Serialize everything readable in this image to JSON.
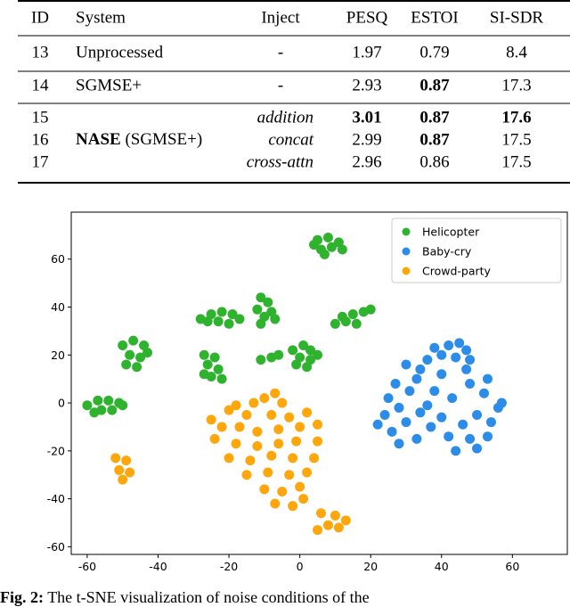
{
  "table": {
    "header": [
      "ID",
      "System",
      "Inject",
      "PESQ",
      "ESTOI",
      "SI-SDR"
    ],
    "rows": [
      {
        "id": "13",
        "system": "Unprocessed",
        "inject": "-",
        "pesq": "1.97",
        "estoi": "0.79",
        "sisdr": "8.4"
      },
      {
        "id": "14",
        "system": "SGMSE+",
        "inject": "-",
        "pesq": "2.93",
        "estoi": "0.87",
        "sisdr": "17.3"
      }
    ],
    "nase": {
      "system": "NASE",
      "variant": "(SGMSE+)",
      "rows": [
        {
          "id": "15",
          "inject": "addition",
          "pesq": "3.01",
          "estoi": "0.87",
          "sisdr": "17.6"
        },
        {
          "id": "16",
          "inject": "concat",
          "pesq": "2.99",
          "estoi": "0.87",
          "sisdr": "17.5"
        },
        {
          "id": "17",
          "inject": "cross-attn",
          "pesq": "2.96",
          "estoi": "0.86",
          "sisdr": "17.5"
        }
      ]
    }
  },
  "chart_data": {
    "type": "scatter",
    "xlim": [
      -64.5,
      75.5
    ],
    "ylim": [
      -63.2,
      79.6
    ],
    "xticks": [
      -60,
      -40,
      -20,
      0,
      20,
      40,
      60
    ],
    "yticks": [
      -60,
      -40,
      -20,
      0,
      20,
      40,
      60
    ],
    "legend": "upper right",
    "series": [
      {
        "name": "Helicopter",
        "color": "#2fb32f",
        "x": [
          5,
          8,
          11,
          6,
          9,
          12,
          4,
          7,
          -11,
          -9,
          -12,
          -8,
          -10,
          -7,
          -11,
          -28,
          -25,
          -22,
          -19,
          -17,
          -23,
          -20,
          -26,
          10,
          13,
          15,
          18,
          20,
          12,
          16,
          -50,
          -47,
          -44,
          -48,
          -45,
          -49,
          -46,
          -43,
          -27,
          -24,
          -26,
          -23,
          -25,
          -27,
          -22,
          -2,
          1,
          3,
          0,
          3,
          -1,
          2,
          5,
          -11,
          -8,
          -6,
          -60,
          -57,
          -54,
          -51,
          -56,
          -53,
          -58,
          -50
        ],
        "y": [
          68,
          69,
          67,
          64,
          65,
          64,
          66,
          62,
          44,
          42,
          39,
          38,
          36,
          35,
          33,
          35,
          37,
          38,
          37,
          35,
          34,
          33,
          34,
          33,
          34,
          37,
          38,
          39,
          36,
          33,
          24,
          26,
          24,
          20,
          19,
          16,
          15,
          21,
          20,
          19,
          16,
          14,
          11,
          12,
          10,
          22,
          24,
          22,
          19,
          18,
          16,
          15,
          20,
          18,
          19,
          20,
          -1,
          1,
          1,
          0,
          -3,
          -3,
          -4,
          -1
        ]
      },
      {
        "name": "Baby-cry",
        "color": "#2c8ce8",
        "x": [
          38,
          42,
          45,
          47,
          40,
          44,
          36,
          48,
          30,
          34,
          33,
          27,
          31,
          25,
          28,
          24,
          22,
          26,
          30,
          34,
          37,
          33,
          28,
          40,
          42,
          46,
          50,
          54,
          48,
          53,
          44,
          50,
          56,
          57,
          52,
          48,
          53,
          47,
          40,
          38,
          43,
          36
        ],
        "y": [
          23,
          24,
          25,
          22,
          20,
          19,
          18,
          18,
          16,
          14,
          10,
          8,
          5,
          2,
          -2,
          -5,
          -9,
          -12,
          -8,
          -4,
          -10,
          -15,
          -17,
          -6,
          -14,
          -9,
          -5,
          -8,
          -15,
          -14,
          -20,
          -19,
          -2,
          0,
          4,
          8,
          10,
          14,
          12,
          5,
          2,
          -1
        ]
      },
      {
        "name": "Crowd-party",
        "color": "#fda70d",
        "x": [
          -52,
          -49,
          -51,
          -48,
          -50,
          -10,
          -7,
          -13,
          -18,
          -20,
          -5,
          -15,
          -8,
          -3,
          2,
          -25,
          -22,
          -17,
          -12,
          -6,
          0,
          5,
          -24,
          -18,
          -12,
          -6,
          -1,
          5,
          -20,
          -14,
          -8,
          -2,
          4,
          -15,
          -9,
          -3,
          2,
          -10,
          -5,
          0,
          -7,
          -2,
          1,
          6,
          10,
          8,
          11,
          5,
          13
        ],
        "y": [
          -23,
          -24,
          -28,
          -29,
          -32,
          2,
          4,
          0,
          -1,
          -3,
          0,
          -5,
          -5,
          -6,
          -4,
          -7,
          -10,
          -10,
          -12,
          -11,
          -10,
          -9,
          -15,
          -17,
          -18,
          -17,
          -16,
          -16,
          -23,
          -24,
          -22,
          -23,
          -23,
          -30,
          -29,
          -30,
          -29,
          -36,
          -37,
          -35,
          -42,
          -43,
          -40,
          -46,
          -47,
          -51,
          -52,
          -53,
          -49
        ]
      }
    ]
  },
  "caption": {
    "label": "Fig. 2:",
    "text": "The t-SNE visualization of noise conditions of the"
  }
}
